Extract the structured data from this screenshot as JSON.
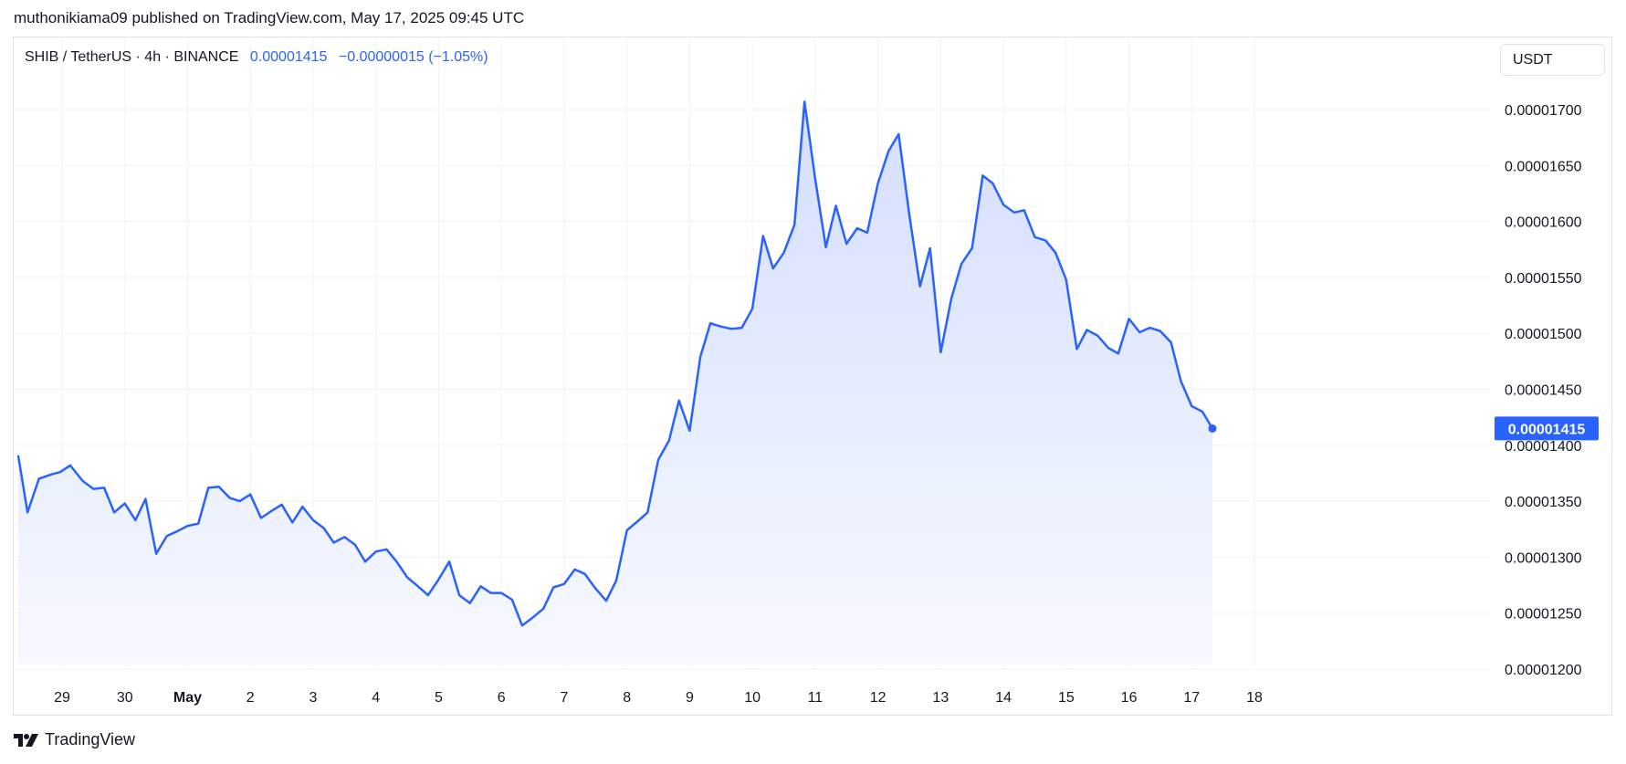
{
  "header": {
    "published": "muthonikiama09 published on TradingView.com, May 17, 2025 09:45 UTC"
  },
  "legend": {
    "symbol": "SHIB / TetherUS · 4h · BINANCE",
    "price": "0.00001415",
    "change": "−0.00000015 (−1.05%)"
  },
  "currency": "USDT",
  "footer": {
    "brand": "TradingView"
  },
  "colors": {
    "line": "#2962ff",
    "fill_top": "#d4defd",
    "fill_bottom": "#f7f9ff",
    "grid": "#f0f3fa",
    "text": "#131722"
  },
  "chart_data": {
    "type": "area",
    "xlabel": "",
    "ylabel": "",
    "grid": true,
    "ylim": [
      1.193e-05,
      1.745e-05
    ],
    "xlim": [
      28.3,
      19.3
    ],
    "x_ticks": [
      {
        "label": "29",
        "x": 29
      },
      {
        "label": "30",
        "x": 30
      },
      {
        "label": "May",
        "x": 31
      },
      {
        "label": "2",
        "x": 32
      },
      {
        "label": "3",
        "x": 33
      },
      {
        "label": "4",
        "x": 34
      },
      {
        "label": "5",
        "x": 35
      },
      {
        "label": "6",
        "x": 36
      },
      {
        "label": "7",
        "x": 37
      },
      {
        "label": "8",
        "x": 38
      },
      {
        "label": "9",
        "x": 39
      },
      {
        "label": "10",
        "x": 40
      },
      {
        "label": "11",
        "x": 41
      },
      {
        "label": "12",
        "x": 42
      },
      {
        "label": "13",
        "x": 43
      },
      {
        "label": "14",
        "x": 44
      },
      {
        "label": "15",
        "x": 45
      },
      {
        "label": "16",
        "x": 46
      },
      {
        "label": "17",
        "x": 47
      },
      {
        "label": "18",
        "x": 48
      }
    ],
    "y_ticks": [
      "0.00001200",
      "0.00001250",
      "0.00001300",
      "0.00001350",
      "0.00001400",
      "0.00001450",
      "0.00001500",
      "0.00001550",
      "0.00001600",
      "0.00001650",
      "0.00001700"
    ],
    "last_value_label": "0.00001415",
    "series": [
      {
        "points": [
          [
            28.3,
            1391
          ],
          [
            28.45,
            1340
          ],
          [
            28.63,
            1370
          ],
          [
            28.83,
            1374
          ],
          [
            28.97,
            1376
          ],
          [
            29.13,
            1382
          ],
          [
            29.33,
            1368
          ],
          [
            29.5,
            1361
          ],
          [
            29.67,
            1362
          ],
          [
            29.83,
            1340
          ],
          [
            30.0,
            1348
          ],
          [
            30.17,
            1333
          ],
          [
            30.33,
            1352
          ],
          [
            30.5,
            1303
          ],
          [
            30.67,
            1319
          ],
          [
            30.83,
            1323
          ],
          [
            31.0,
            1328
          ],
          [
            31.17,
            1330
          ],
          [
            31.33,
            1362
          ],
          [
            31.5,
            1363
          ],
          [
            31.67,
            1353
          ],
          [
            31.83,
            1350
          ],
          [
            32.0,
            1356
          ],
          [
            32.17,
            1335
          ],
          [
            32.33,
            1341
          ],
          [
            32.5,
            1347
          ],
          [
            32.67,
            1331
          ],
          [
            32.83,
            1345
          ],
          [
            33.0,
            1333
          ],
          [
            33.17,
            1326
          ],
          [
            33.33,
            1313
          ],
          [
            33.5,
            1318
          ],
          [
            33.67,
            1311
          ],
          [
            33.83,
            1296
          ],
          [
            34.0,
            1305
          ],
          [
            34.17,
            1307
          ],
          [
            34.33,
            1296
          ],
          [
            34.5,
            1282
          ],
          [
            34.67,
            1274
          ],
          [
            34.83,
            1266
          ],
          [
            35.0,
            1280
          ],
          [
            35.17,
            1296
          ],
          [
            35.33,
            1266
          ],
          [
            35.5,
            1259
          ],
          [
            35.67,
            1274
          ],
          [
            35.83,
            1268
          ],
          [
            36.0,
            1268
          ],
          [
            36.17,
            1262
          ],
          [
            36.33,
            1239
          ],
          [
            36.5,
            1246
          ],
          [
            36.67,
            1254
          ],
          [
            36.83,
            1273
          ],
          [
            37.0,
            1276
          ],
          [
            37.17,
            1289
          ],
          [
            37.33,
            1285
          ],
          [
            37.5,
            1272
          ],
          [
            37.67,
            1261
          ],
          [
            37.83,
            1279
          ],
          [
            38.0,
            1324
          ],
          [
            38.17,
            1332
          ],
          [
            38.33,
            1340
          ],
          [
            38.5,
            1387
          ],
          [
            38.67,
            1404
          ],
          [
            38.83,
            1440
          ],
          [
            39.0,
            1413
          ],
          [
            39.17,
            1479
          ],
          [
            39.33,
            1509
          ],
          [
            39.5,
            1506
          ],
          [
            39.67,
            1504
          ],
          [
            39.83,
            1505
          ],
          [
            40.0,
            1522
          ],
          [
            40.17,
            1587
          ],
          [
            40.33,
            1558
          ],
          [
            40.5,
            1572
          ],
          [
            40.67,
            1597
          ],
          [
            40.83,
            1707
          ],
          [
            41.0,
            1638
          ],
          [
            41.17,
            1577
          ],
          [
            41.33,
            1614
          ],
          [
            41.5,
            1580
          ],
          [
            41.67,
            1594
          ],
          [
            41.83,
            1590
          ],
          [
            42.0,
            1634
          ],
          [
            42.17,
            1663
          ],
          [
            42.33,
            1678
          ],
          [
            42.5,
            1606
          ],
          [
            42.67,
            1542
          ],
          [
            42.83,
            1576
          ],
          [
            43.0,
            1483
          ],
          [
            43.17,
            1531
          ],
          [
            43.33,
            1562
          ],
          [
            43.5,
            1576
          ],
          [
            43.67,
            1641
          ],
          [
            43.83,
            1634
          ],
          [
            44.0,
            1615
          ],
          [
            44.17,
            1608
          ],
          [
            44.33,
            1610
          ],
          [
            44.5,
            1586
          ],
          [
            44.67,
            1583
          ],
          [
            44.83,
            1572
          ],
          [
            45.0,
            1548
          ],
          [
            45.17,
            1486
          ],
          [
            45.33,
            1503
          ],
          [
            45.5,
            1498
          ],
          [
            45.67,
            1487
          ],
          [
            45.83,
            1482
          ],
          [
            46.0,
            1513
          ],
          [
            46.17,
            1501
          ],
          [
            46.33,
            1505
          ],
          [
            46.5,
            1502
          ],
          [
            46.67,
            1492
          ],
          [
            46.83,
            1457
          ],
          [
            47.0,
            1435
          ],
          [
            47.17,
            1430
          ],
          [
            47.33,
            1415
          ]
        ]
      }
    ]
  }
}
